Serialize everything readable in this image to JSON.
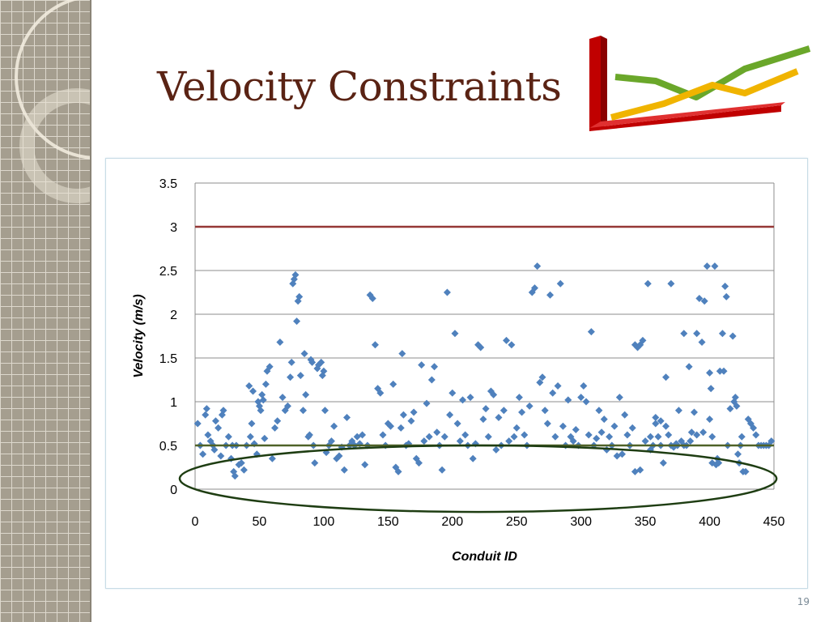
{
  "slide": {
    "title": "Velocity Constraints",
    "slide_number": "19"
  },
  "colors": {
    "title": "#5a2314",
    "points": "#4f81bd",
    "max_line": "#953735",
    "min_line": "#4f6228",
    "highlight_ellipse": "#1e3d12"
  },
  "icons": {
    "logo": "3d-line-chart-icon"
  },
  "chart_data": {
    "type": "scatter",
    "title": "",
    "xlabel": "Conduit ID",
    "ylabel": "Velocity (m/s)",
    "xlim": [
      0,
      450
    ],
    "ylim": [
      0,
      3.5
    ],
    "x_ticks": [
      0,
      50,
      100,
      150,
      200,
      250,
      300,
      350,
      400,
      450
    ],
    "y_ticks": [
      0,
      0.5,
      1,
      1.5,
      2,
      2.5,
      3,
      3.5
    ],
    "grid": "horizontal",
    "legend": "none",
    "reference_lines": [
      {
        "y": 3,
        "color": "#953735"
      },
      {
        "y": 0.5,
        "color": "#4f6228"
      }
    ],
    "annotation": {
      "type": "ellipse",
      "center": [
        220,
        0.12
      ],
      "radius": [
        232,
        0.38
      ],
      "color": "#1e3d12"
    },
    "points": [
      [
        2,
        0.75
      ],
      [
        4,
        0.5
      ],
      [
        6,
        0.4
      ],
      [
        8,
        0.85
      ],
      [
        9,
        0.92
      ],
      [
        10,
        0.62
      ],
      [
        12,
        0.55
      ],
      [
        14,
        0.5
      ],
      [
        15,
        0.45
      ],
      [
        16,
        0.78
      ],
      [
        18,
        0.7
      ],
      [
        20,
        0.38
      ],
      [
        21,
        0.85
      ],
      [
        22,
        0.9
      ],
      [
        24,
        0.5
      ],
      [
        26,
        0.6
      ],
      [
        28,
        0.35
      ],
      [
        29,
        0.5
      ],
      [
        30,
        0.2
      ],
      [
        31,
        0.15
      ],
      [
        32,
        0.5
      ],
      [
        34,
        0.28
      ],
      [
        36,
        0.3
      ],
      [
        38,
        0.22
      ],
      [
        40,
        0.5
      ],
      [
        42,
        1.18
      ],
      [
        43,
        0.6
      ],
      [
        44,
        0.75
      ],
      [
        45,
        1.12
      ],
      [
        46,
        0.52
      ],
      [
        48,
        0.4
      ],
      [
        49,
        1.0
      ],
      [
        50,
        0.95
      ],
      [
        51,
        0.9
      ],
      [
        52,
        1.08
      ],
      [
        53,
        1.02
      ],
      [
        54,
        0.58
      ],
      [
        55,
        1.2
      ],
      [
        56,
        1.35
      ],
      [
        58,
        1.4
      ],
      [
        60,
        0.35
      ],
      [
        62,
        0.7
      ],
      [
        64,
        0.78
      ],
      [
        66,
        1.68
      ],
      [
        68,
        1.05
      ],
      [
        70,
        0.9
      ],
      [
        72,
        0.95
      ],
      [
        74,
        1.28
      ],
      [
        75,
        1.45
      ],
      [
        76,
        2.35
      ],
      [
        77,
        2.4
      ],
      [
        78,
        2.45
      ],
      [
        79,
        1.92
      ],
      [
        80,
        2.15
      ],
      [
        81,
        2.2
      ],
      [
        82,
        1.3
      ],
      [
        84,
        0.9
      ],
      [
        85,
        1.55
      ],
      [
        86,
        1.08
      ],
      [
        88,
        0.6
      ],
      [
        89,
        0.62
      ],
      [
        90,
        1.48
      ],
      [
        91,
        1.45
      ],
      [
        92,
        0.5
      ],
      [
        93,
        0.3
      ],
      [
        95,
        1.38
      ],
      [
        96,
        1.42
      ],
      [
        98,
        1.45
      ],
      [
        99,
        1.3
      ],
      [
        100,
        1.35
      ],
      [
        101,
        0.9
      ],
      [
        102,
        0.42
      ],
      [
        104,
        0.5
      ],
      [
        106,
        0.55
      ],
      [
        108,
        0.72
      ],
      [
        110,
        0.35
      ],
      [
        112,
        0.38
      ],
      [
        114,
        0.48
      ],
      [
        116,
        0.22
      ],
      [
        118,
        0.82
      ],
      [
        120,
        0.5
      ],
      [
        122,
        0.55
      ],
      [
        124,
        0.5
      ],
      [
        126,
        0.6
      ],
      [
        128,
        0.52
      ],
      [
        130,
        0.62
      ],
      [
        132,
        0.28
      ],
      [
        134,
        0.5
      ],
      [
        136,
        2.22
      ],
      [
        138,
        2.18
      ],
      [
        140,
        1.65
      ],
      [
        142,
        1.15
      ],
      [
        144,
        1.1
      ],
      [
        146,
        0.62
      ],
      [
        148,
        0.5
      ],
      [
        150,
        0.75
      ],
      [
        152,
        0.72
      ],
      [
        154,
        1.2
      ],
      [
        156,
        0.25
      ],
      [
        158,
        0.2
      ],
      [
        160,
        0.7
      ],
      [
        161,
        1.55
      ],
      [
        162,
        0.85
      ],
      [
        164,
        0.5
      ],
      [
        166,
        0.52
      ],
      [
        168,
        0.78
      ],
      [
        170,
        0.88
      ],
      [
        172,
        0.35
      ],
      [
        174,
        0.3
      ],
      [
        176,
        1.42
      ],
      [
        178,
        0.55
      ],
      [
        180,
        0.98
      ],
      [
        182,
        0.6
      ],
      [
        184,
        1.25
      ],
      [
        186,
        1.4
      ],
      [
        188,
        0.65
      ],
      [
        190,
        0.5
      ],
      [
        192,
        0.22
      ],
      [
        194,
        0.6
      ],
      [
        196,
        2.25
      ],
      [
        198,
        0.85
      ],
      [
        200,
        1.1
      ],
      [
        202,
        1.78
      ],
      [
        204,
        0.75
      ],
      [
        206,
        0.55
      ],
      [
        208,
        1.02
      ],
      [
        210,
        0.62
      ],
      [
        212,
        0.5
      ],
      [
        214,
        1.05
      ],
      [
        216,
        0.35
      ],
      [
        218,
        0.52
      ],
      [
        220,
        1.65
      ],
      [
        222,
        1.62
      ],
      [
        224,
        0.8
      ],
      [
        226,
        0.92
      ],
      [
        228,
        0.6
      ],
      [
        230,
        1.12
      ],
      [
        232,
        1.08
      ],
      [
        234,
        0.45
      ],
      [
        236,
        0.82
      ],
      [
        238,
        0.5
      ],
      [
        240,
        0.9
      ],
      [
        242,
        1.7
      ],
      [
        244,
        0.55
      ],
      [
        246,
        1.65
      ],
      [
        248,
        0.6
      ],
      [
        250,
        0.7
      ],
      [
        252,
        1.05
      ],
      [
        254,
        0.88
      ],
      [
        256,
        0.62
      ],
      [
        258,
        0.5
      ],
      [
        260,
        0.95
      ],
      [
        262,
        2.25
      ],
      [
        264,
        2.3
      ],
      [
        266,
        2.55
      ],
      [
        268,
        1.22
      ],
      [
        270,
        1.28
      ],
      [
        272,
        0.9
      ],
      [
        274,
        0.75
      ],
      [
        276,
        2.22
      ],
      [
        278,
        1.1
      ],
      [
        280,
        0.6
      ],
      [
        282,
        1.18
      ],
      [
        284,
        2.35
      ],
      [
        286,
        0.72
      ],
      [
        288,
        0.5
      ],
      [
        290,
        1.02
      ],
      [
        292,
        0.6
      ],
      [
        294,
        0.55
      ],
      [
        296,
        0.68
      ],
      [
        298,
        0.5
      ],
      [
        300,
        1.05
      ],
      [
        302,
        1.18
      ],
      [
        304,
        1.0
      ],
      [
        306,
        0.62
      ],
      [
        308,
        1.8
      ],
      [
        310,
        0.5
      ],
      [
        312,
        0.58
      ],
      [
        314,
        0.9
      ],
      [
        316,
        0.65
      ],
      [
        318,
        0.8
      ],
      [
        320,
        0.45
      ],
      [
        322,
        0.6
      ],
      [
        324,
        0.5
      ],
      [
        326,
        0.72
      ],
      [
        328,
        0.38
      ],
      [
        330,
        1.05
      ],
      [
        332,
        0.4
      ],
      [
        334,
        0.85
      ],
      [
        336,
        0.62
      ],
      [
        338,
        0.5
      ],
      [
        340,
        0.7
      ],
      [
        342,
        1.65
      ],
      [
        344,
        1.62
      ],
      [
        346,
        1.65
      ],
      [
        348,
        1.7
      ],
      [
        350,
        0.55
      ],
      [
        352,
        2.35
      ],
      [
        354,
        0.6
      ],
      [
        356,
        0.5
      ],
      [
        358,
        0.75
      ],
      [
        360,
        0.6
      ],
      [
        362,
        0.5
      ],
      [
        364,
        0.3
      ],
      [
        366,
        1.28
      ],
      [
        368,
        0.62
      ],
      [
        370,
        2.35
      ],
      [
        372,
        0.48
      ],
      [
        374,
        0.52
      ],
      [
        376,
        0.9
      ],
      [
        378,
        0.55
      ],
      [
        380,
        1.78
      ],
      [
        382,
        0.5
      ],
      [
        384,
        1.4
      ],
      [
        386,
        0.65
      ],
      [
        388,
        0.88
      ],
      [
        390,
        1.78
      ],
      [
        392,
        2.18
      ],
      [
        394,
        1.68
      ],
      [
        396,
        2.15
      ],
      [
        398,
        2.55
      ],
      [
        400,
        0.8
      ],
      [
        401,
        1.15
      ],
      [
        402,
        0.6
      ],
      [
        404,
        2.55
      ],
      [
        406,
        0.35
      ],
      [
        408,
        1.35
      ],
      [
        410,
        1.78
      ],
      [
        411,
        1.35
      ],
      [
        412,
        2.32
      ],
      [
        413,
        2.2
      ],
      [
        414,
        0.5
      ],
      [
        416,
        0.92
      ],
      [
        418,
        1.75
      ],
      [
        419,
        1.0
      ],
      [
        420,
        1.05
      ],
      [
        421,
        0.95
      ],
      [
        422,
        0.4
      ],
      [
        423,
        0.3
      ],
      [
        424,
        0.5
      ],
      [
        425,
        0.6
      ],
      [
        426,
        0.2
      ],
      [
        428,
        0.2
      ],
      [
        430,
        0.8
      ],
      [
        432,
        0.75
      ],
      [
        434,
        0.7
      ],
      [
        436,
        0.62
      ],
      [
        438,
        0.5
      ],
      [
        440,
        0.5
      ],
      [
        442,
        0.5
      ],
      [
        444,
        0.5
      ],
      [
        446,
        0.5
      ],
      [
        448,
        0.55
      ],
      [
        400,
        1.33
      ],
      [
        402,
        0.3
      ],
      [
        405,
        0.28
      ],
      [
        407,
        0.3
      ],
      [
        395,
        0.65
      ],
      [
        390,
        0.62
      ],
      [
        385,
        0.55
      ],
      [
        380,
        0.5
      ],
      [
        375,
        0.5
      ],
      [
        370,
        0.5
      ],
      [
        366,
        0.72
      ],
      [
        362,
        0.78
      ],
      [
        358,
        0.82
      ],
      [
        354,
        0.45
      ],
      [
        346,
        0.22
      ],
      [
        342,
        0.2
      ]
    ]
  }
}
